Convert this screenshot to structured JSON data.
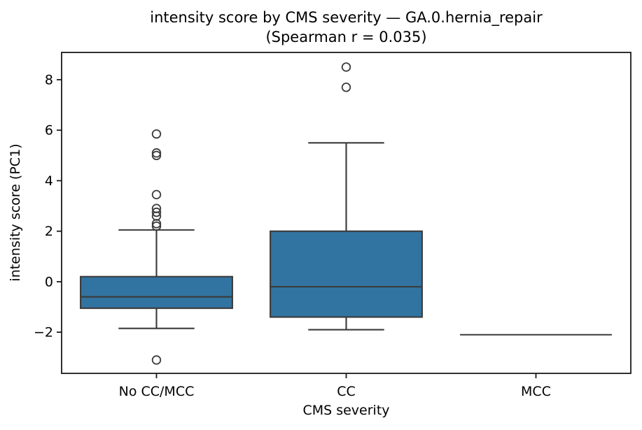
{
  "figure": {
    "title_line1": "intensity score by CMS severity — GA.0.hernia_repair",
    "title_line2": "(Spearman r = 0.035)"
  },
  "chart_data": {
    "type": "box",
    "title": "intensity score by CMS severity — GA.0.hernia_repair (Spearman r = 0.035)",
    "xlabel": "CMS severity",
    "ylabel": "intensity score (PC1)",
    "categories": [
      "No CC/MCC",
      "CC",
      "MCC"
    ],
    "yticks": [
      -2,
      0,
      2,
      4,
      6,
      8
    ],
    "ylim": [
      -3.63,
      9.08
    ],
    "xlim": [
      -0.5,
      2.5
    ],
    "box_width": 0.8,
    "cap_width": 0.4,
    "grid": false,
    "legend": null,
    "colors": {
      "box_fill": "#3274a1",
      "box_line": "#3a3a3a",
      "spine": "#1a1a1a",
      "text": "#000000"
    },
    "series": [
      {
        "name": "No CC/MCC",
        "whislo": -1.85,
        "q1": -1.05,
        "med": -0.6,
        "q3": 0.2,
        "whishi": 2.05,
        "outliers": [
          5.85,
          5.1,
          5.0,
          3.45,
          2.9,
          2.75,
          2.6,
          2.3,
          2.2,
          -3.1
        ]
      },
      {
        "name": "CC",
        "whislo": -1.9,
        "q1": -1.4,
        "med": -0.2,
        "q3": 2.0,
        "whishi": 5.5,
        "outliers": [
          8.5,
          7.7
        ]
      },
      {
        "name": "MCC",
        "whislo": -2.1,
        "q1": -2.1,
        "med": -2.1,
        "q3": -2.1,
        "whishi": -2.1,
        "outliers": []
      }
    ]
  }
}
